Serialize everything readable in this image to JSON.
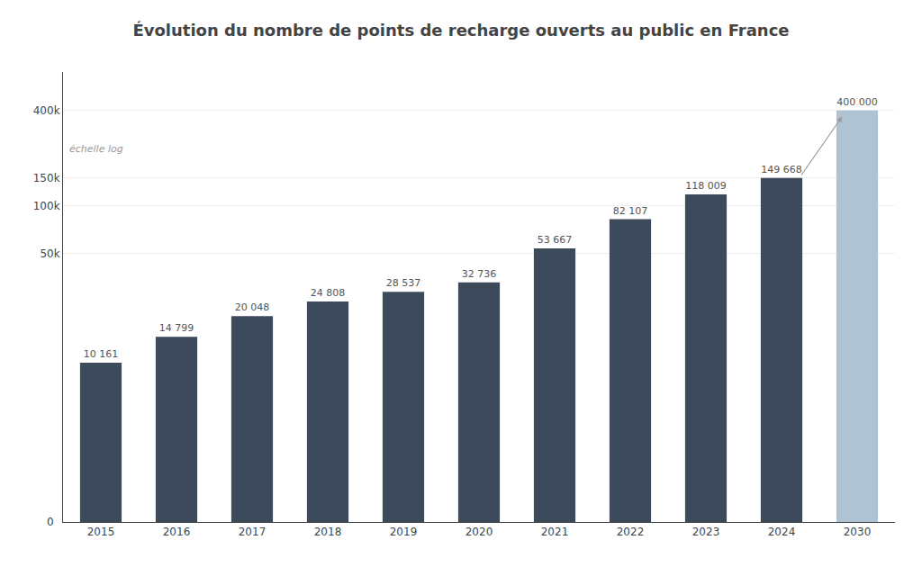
{
  "chart_data": {
    "type": "bar",
    "title": "Évolution du nombre de points de recharge ouverts au public en France",
    "categories": [
      "2015",
      "2016",
      "2017",
      "2018",
      "2019",
      "2020",
      "2021",
      "2022",
      "2023",
      "2024",
      "2030"
    ],
    "values": [
      10161,
      14799,
      20048,
      24808,
      28537,
      32736,
      53667,
      82107,
      118009,
      149668,
      400000
    ],
    "value_labels": [
      "10 161",
      "14 799",
      "20 048",
      "24 808",
      "28 537",
      "32 736",
      "53 667",
      "82 107",
      "118 009",
      "149 668",
      "400 000"
    ],
    "data_labels": true,
    "colors": [
      "#3d4a5c",
      "#3d4a5c",
      "#3d4a5c",
      "#3d4a5c",
      "#3d4a5c",
      "#3d4a5c",
      "#3d4a5c",
      "#3d4a5c",
      "#3d4a5c",
      "#3d4a5c",
      "#aec3d4"
    ],
    "log": "y",
    "ylim": [
      1000,
      700000
    ],
    "yticks": [
      {
        "value": 50000,
        "label": "50k"
      },
      {
        "value": 100000,
        "label": "100k"
      },
      {
        "value": 150000,
        "label": "150k"
      },
      {
        "value": 400000,
        "label": "400k"
      }
    ],
    "grid": true,
    "annotations": [
      "0",
      "échelle log"
    ]
  }
}
